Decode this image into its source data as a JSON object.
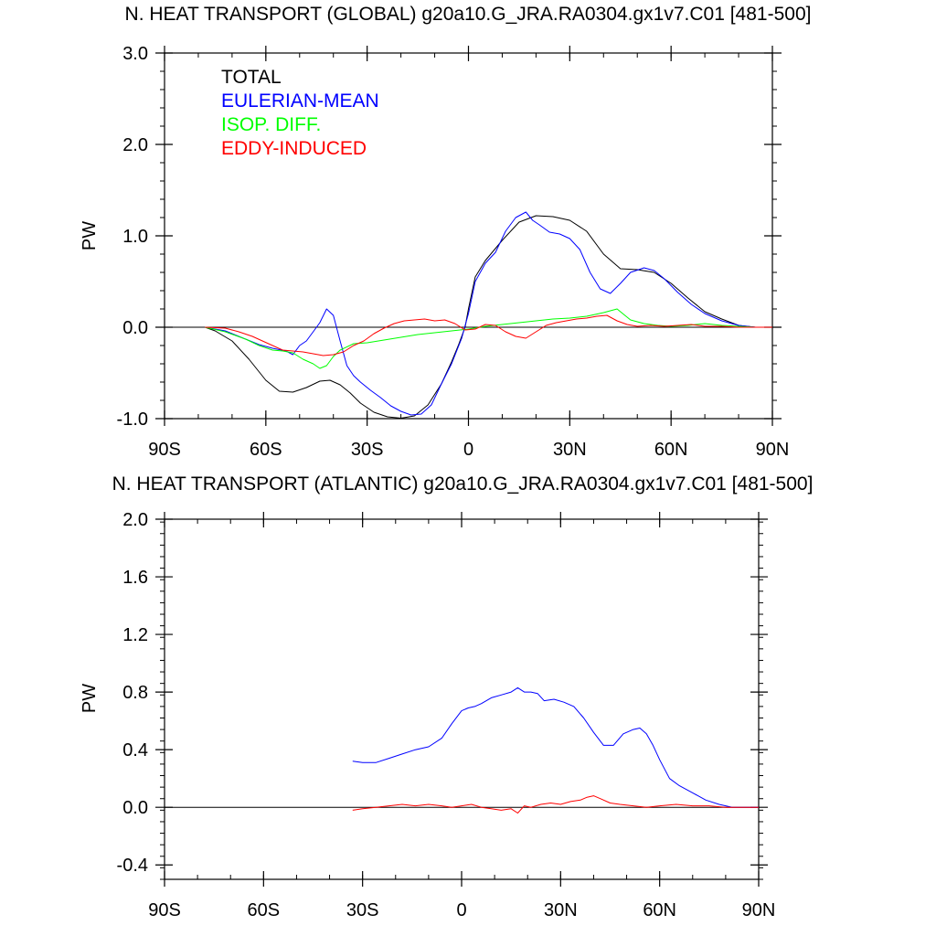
{
  "chart_data": [
    {
      "type": "line",
      "title": "N. HEAT TRANSPORT (GLOBAL) g20a10.G_JRA.RA0304.gx1v7.C01 [481-500]",
      "ylabel": "PW",
      "xlim": [
        -90,
        90
      ],
      "ylim": [
        -1.0,
        3.0
      ],
      "x_ticks": [
        -90,
        -60,
        -30,
        0,
        30,
        60,
        90
      ],
      "x_tick_labels": [
        "90S",
        "60S",
        "30S",
        "0",
        "30N",
        "60N",
        "90N"
      ],
      "y_ticks": [
        -1.0,
        0.0,
        1.0,
        2.0,
        3.0
      ],
      "y_tick_labels": [
        "-1.0",
        "0.0",
        "1.0",
        "2.0",
        "3.0"
      ],
      "zero_line": true,
      "legend_position": "top-left",
      "series": [
        {
          "name": "TOTAL",
          "color": "#000000",
          "x": [
            -78,
            -75,
            -70,
            -65,
            -60,
            -56,
            -52,
            -48,
            -44,
            -41,
            -38,
            -35,
            -32,
            -28,
            -24,
            -20,
            -16,
            -12,
            -8,
            -5,
            -3,
            -1,
            0,
            2,
            5,
            10,
            15,
            20,
            25,
            30,
            35,
            40,
            45,
            50,
            55,
            60,
            65,
            70,
            75,
            80,
            85,
            90
          ],
          "y": [
            0.0,
            -0.04,
            -0.15,
            -0.35,
            -0.58,
            -0.7,
            -0.71,
            -0.66,
            -0.59,
            -0.58,
            -0.63,
            -0.72,
            -0.83,
            -0.93,
            -0.98,
            -0.995,
            -0.97,
            -0.85,
            -0.62,
            -0.38,
            -0.2,
            0.0,
            0.2,
            0.55,
            0.73,
            0.95,
            1.15,
            1.22,
            1.21,
            1.17,
            1.05,
            0.8,
            0.64,
            0.63,
            0.6,
            0.48,
            0.32,
            0.17,
            0.09,
            0.02,
            0.0,
            0.0
          ]
        },
        {
          "name": "EULERIAN-MEAN",
          "color": "#0000ff",
          "x": [
            -78,
            -72,
            -66,
            -62,
            -58,
            -54,
            -52,
            -50,
            -48,
            -46,
            -44,
            -42,
            -40,
            -38,
            -36,
            -34,
            -32,
            -29,
            -26,
            -23,
            -20,
            -17,
            -14,
            -11,
            -8,
            -5,
            -2,
            0,
            2,
            5,
            8,
            11,
            14,
            17,
            19,
            21,
            24,
            27,
            30,
            33,
            36,
            39,
            42,
            45,
            48,
            52,
            55,
            58,
            62,
            66,
            70,
            75,
            80,
            85,
            90
          ],
          "y": [
            0.0,
            -0.04,
            -0.13,
            -0.19,
            -0.23,
            -0.26,
            -0.3,
            -0.2,
            -0.15,
            -0.05,
            0.05,
            0.2,
            0.13,
            -0.15,
            -0.42,
            -0.53,
            -0.6,
            -0.69,
            -0.77,
            -0.86,
            -0.92,
            -0.96,
            -0.95,
            -0.85,
            -0.62,
            -0.4,
            -0.12,
            0.15,
            0.5,
            0.7,
            0.82,
            1.05,
            1.2,
            1.26,
            1.17,
            1.12,
            1.04,
            1.02,
            0.97,
            0.85,
            0.6,
            0.42,
            0.37,
            0.48,
            0.6,
            0.65,
            0.62,
            0.53,
            0.38,
            0.25,
            0.15,
            0.07,
            0.02,
            0.0,
            0.0
          ]
        },
        {
          "name": "ISOP. DIFF.",
          "color": "#00ff00",
          "x": [
            -78,
            -72,
            -66,
            -62,
            -58,
            -55,
            -52,
            -49,
            -46,
            -44,
            -42,
            -40,
            -38,
            -34,
            -30,
            -25,
            -20,
            -15,
            -10,
            -5,
            0,
            5,
            10,
            15,
            20,
            25,
            30,
            35,
            40,
            42,
            44,
            46,
            48,
            52,
            56,
            60,
            65,
            70,
            75,
            80,
            85,
            90
          ],
          "y": [
            0.0,
            -0.05,
            -0.13,
            -0.2,
            -0.25,
            -0.26,
            -0.28,
            -0.35,
            -0.4,
            -0.45,
            -0.42,
            -0.32,
            -0.25,
            -0.18,
            -0.17,
            -0.14,
            -0.11,
            -0.08,
            -0.06,
            -0.04,
            -0.02,
            0.01,
            0.03,
            0.05,
            0.07,
            0.09,
            0.1,
            0.12,
            0.16,
            0.18,
            0.2,
            0.14,
            0.08,
            0.04,
            0.02,
            0.01,
            0.02,
            0.04,
            0.02,
            0.01,
            0.0,
            0.0
          ]
        },
        {
          "name": "EDDY-INDUCED",
          "color": "#ff0000",
          "x": [
            -78,
            -72,
            -68,
            -64,
            -61,
            -58,
            -55,
            -52,
            -49,
            -46,
            -43,
            -40,
            -37,
            -34,
            -31,
            -28,
            -25,
            -22,
            -19,
            -16,
            -13,
            -10,
            -7,
            -4,
            -1,
            2,
            5,
            8,
            11,
            14,
            17,
            20,
            23,
            26,
            29,
            32,
            35,
            38,
            41,
            44,
            47,
            50,
            54,
            58,
            62,
            66,
            70,
            75,
            80,
            85,
            90
          ],
          "y": [
            0.0,
            -0.01,
            -0.05,
            -0.1,
            -0.15,
            -0.2,
            -0.25,
            -0.26,
            -0.27,
            -0.29,
            -0.31,
            -0.3,
            -0.27,
            -0.2,
            -0.15,
            -0.07,
            -0.01,
            0.04,
            0.07,
            0.08,
            0.09,
            0.07,
            0.08,
            0.04,
            -0.03,
            -0.02,
            0.03,
            0.02,
            -0.05,
            -0.1,
            -0.12,
            -0.05,
            0.02,
            0.05,
            0.07,
            0.09,
            0.1,
            0.12,
            0.13,
            0.07,
            0.03,
            0.01,
            0.02,
            0.01,
            0.02,
            0.03,
            0.01,
            0.01,
            0.0,
            0.0,
            0.0
          ]
        }
      ]
    },
    {
      "type": "line",
      "title": "N. HEAT TRANSPORT (ATLANTIC) g20a10.G_JRA.RA0304.gx1v7.C01 [481-500]",
      "ylabel": "PW",
      "xlim": [
        -90,
        90
      ],
      "ylim": [
        -0.5,
        2.0
      ],
      "x_ticks": [
        -90,
        -60,
        -30,
        0,
        30,
        60,
        90
      ],
      "x_tick_labels": [
        "90S",
        "60S",
        "30S",
        "0",
        "30N",
        "60N",
        "90N"
      ],
      "y_ticks": [
        -0.4,
        0.0,
        0.4,
        0.8,
        1.2,
        1.6,
        2.0
      ],
      "y_tick_labels": [
        "-0.4",
        "0.0",
        "0.4",
        "0.8",
        "1.2",
        "1.6",
        "2.0"
      ],
      "zero_line": true,
      "series": [
        {
          "color": "#0000ff",
          "x": [
            -33,
            -30,
            -26,
            -22,
            -18,
            -14,
            -10,
            -6,
            -3,
            0,
            2,
            4,
            6,
            9,
            12,
            15,
            17,
            19,
            21,
            23,
            25,
            28,
            31,
            34,
            37,
            40,
            43,
            46,
            49,
            52,
            54,
            56,
            58,
            60,
            63,
            66,
            70,
            74,
            78,
            82,
            86,
            90
          ],
          "y": [
            0.32,
            0.31,
            0.31,
            0.34,
            0.37,
            0.4,
            0.42,
            0.48,
            0.58,
            0.67,
            0.69,
            0.7,
            0.72,
            0.76,
            0.78,
            0.8,
            0.83,
            0.8,
            0.8,
            0.79,
            0.74,
            0.75,
            0.73,
            0.7,
            0.62,
            0.52,
            0.43,
            0.43,
            0.51,
            0.54,
            0.55,
            0.51,
            0.43,
            0.33,
            0.2,
            0.15,
            0.1,
            0.05,
            0.02,
            0.0,
            0.0,
            0.0
          ]
        },
        {
          "color": "#ff0000",
          "x": [
            -33,
            -30,
            -26,
            -22,
            -18,
            -14,
            -10,
            -6,
            -3,
            0,
            3,
            6,
            9,
            12,
            15,
            17,
            19,
            21,
            24,
            27,
            30,
            33,
            36,
            38,
            40,
            42,
            45,
            48,
            52,
            56,
            60,
            65,
            70,
            75,
            80,
            85,
            90
          ],
          "y": [
            -0.02,
            -0.01,
            0.0,
            0.01,
            0.02,
            0.01,
            0.02,
            0.01,
            0.0,
            0.01,
            0.02,
            0.0,
            -0.01,
            -0.02,
            -0.01,
            -0.04,
            0.01,
            0.0,
            0.02,
            0.03,
            0.02,
            0.04,
            0.05,
            0.07,
            0.08,
            0.06,
            0.03,
            0.02,
            0.01,
            0.0,
            0.01,
            0.02,
            0.01,
            0.01,
            0.0,
            0.0,
            0.0
          ]
        }
      ]
    }
  ]
}
